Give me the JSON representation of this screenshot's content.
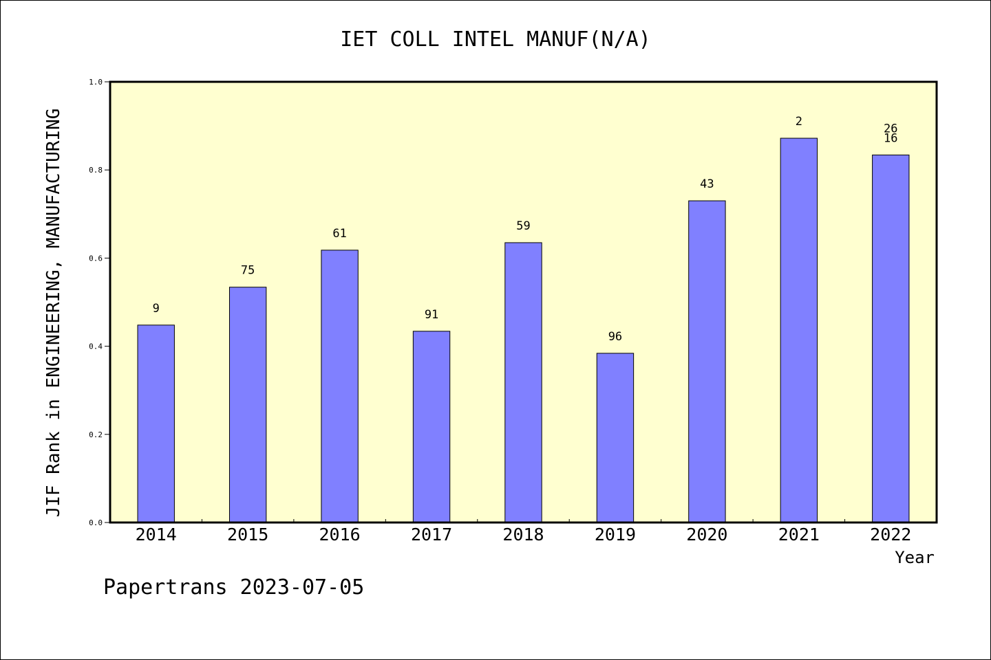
{
  "chart_data": {
    "type": "bar",
    "title": "IET COLL INTEL MANUF(N/A)",
    "xlabel": "Year",
    "ylabel": "JIF Rank in ENGINEERING, MANUFACTURING",
    "categories": [
      "2014",
      "2015",
      "2016",
      "2017",
      "2018",
      "2019",
      "2020",
      "2021",
      "2022"
    ],
    "values": [
      0.448,
      0.534,
      0.618,
      0.434,
      0.635,
      0.384,
      0.73,
      0.872,
      0.834
    ],
    "bar_labels": [
      [
        "9"
      ],
      [
        "75"
      ],
      [
        "61"
      ],
      [
        "91"
      ],
      [
        "59"
      ],
      [
        "96"
      ],
      [
        "43"
      ],
      [
        "2"
      ],
      [
        "26",
        "16"
      ]
    ],
    "ylim": [
      0,
      1.0
    ],
    "yticks": [
      "0.0",
      "0.2",
      "0.4",
      "0.6",
      "0.8",
      "1.0"
    ],
    "grid": false,
    "legend": "none",
    "colors": {
      "bar": "#8080ff",
      "plot_bg": "#ffffd0",
      "axis": "#000000"
    }
  },
  "footer": "Papertrans 2023-07-05"
}
